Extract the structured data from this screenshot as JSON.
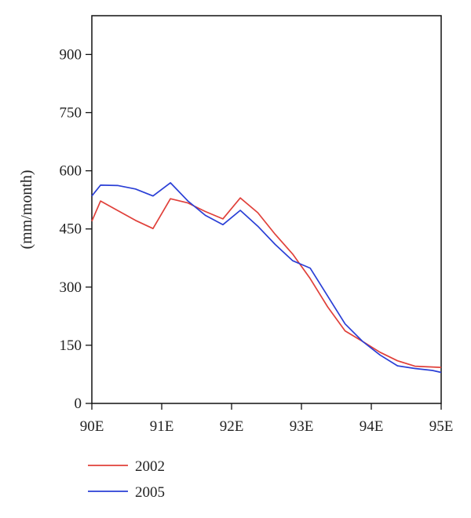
{
  "chart_data": {
    "type": "line",
    "title": "",
    "xlabel": "",
    "ylabel": "(mm/month)",
    "xlim": [
      90,
      95
    ],
    "ylim": [
      0,
      1000
    ],
    "x_ticks": [
      90,
      91,
      92,
      93,
      94,
      95
    ],
    "x_tick_labels": [
      "90E",
      "91E",
      "92E",
      "93E",
      "94E",
      "95E"
    ],
    "y_ticks": [
      0,
      150,
      300,
      450,
      600,
      750,
      900
    ],
    "y_tick_labels": [
      "0",
      "150",
      "300",
      "450",
      "600",
      "750",
      "900"
    ],
    "grid": false,
    "legend_position": "bottom-left, below plot",
    "x": [
      90.0,
      90.125,
      90.375,
      90.625,
      90.875,
      91.125,
      91.375,
      91.625,
      91.875,
      92.125,
      92.375,
      92.625,
      92.875,
      93.125,
      93.375,
      93.625,
      93.875,
      94.125,
      94.375,
      94.625,
      94.875,
      95.0
    ],
    "series": [
      {
        "name": "2002",
        "color": "#e0403a",
        "values": [
          470,
          522,
          497,
          472,
          451,
          528,
          517,
          495,
          476,
          530,
          492,
          436,
          385,
          322,
          249,
          187,
          160,
          132,
          110,
          96,
          94,
          93
        ]
      },
      {
        "name": "2005",
        "color": "#2a3fd6",
        "values": [
          535,
          563,
          562,
          553,
          535,
          569,
          522,
          485,
          461,
          498,
          457,
          410,
          368,
          349,
          277,
          205,
          160,
          125,
          97,
          90,
          85,
          80
        ]
      }
    ]
  }
}
